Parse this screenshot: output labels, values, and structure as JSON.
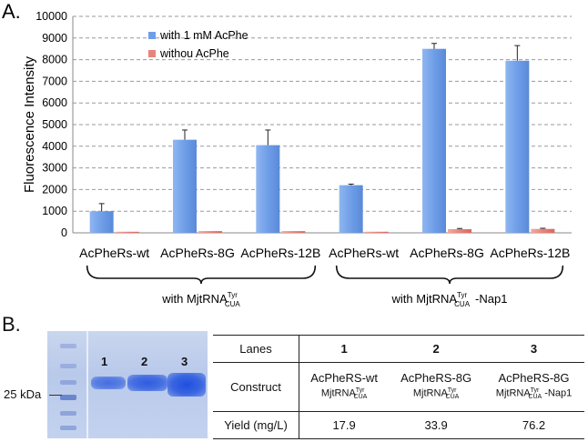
{
  "panel_a_label": "A.",
  "panel_b_label": "B.",
  "colors": {
    "with": "#6f9ee8",
    "without": "#e8847a",
    "grid": "#9a9a9a"
  },
  "chart_data": {
    "type": "bar",
    "title": "",
    "xlabel": "",
    "ylabel": "Fluorescence Intensity",
    "ylim": [
      0,
      10000
    ],
    "yticks": [
      0,
      1000,
      2000,
      3000,
      4000,
      5000,
      6000,
      7000,
      8000,
      9000,
      10000
    ],
    "grid": true,
    "legend_position": "top-left",
    "categories": [
      "AcPheRs-wt",
      "AcPheRs-8G",
      "AcPheRs-12B",
      "AcPheRs-wt",
      "AcPheRs-8G",
      "AcPheRs-12B"
    ],
    "series": [
      {
        "name": "with 1 mM AcPhe",
        "values": [
          1000,
          4300,
          4050,
          2200,
          8500,
          7950
        ],
        "errors": [
          350,
          450,
          700,
          50,
          250,
          700
        ]
      },
      {
        "name": "withou AcPhe",
        "values": [
          50,
          80,
          80,
          50,
          170,
          180
        ],
        "errors": [
          0,
          0,
          0,
          0,
          30,
          30
        ]
      }
    ],
    "groups": [
      {
        "prefix": "with",
        "trna": "MjtRNA",
        "sup": "Tyr",
        "sub": "CUA",
        "suffix": ""
      },
      {
        "prefix": "with",
        "trna": "MjtRNA",
        "sup": "Tyr",
        "sub": "CUA",
        "suffix": "-Nap1"
      }
    ]
  },
  "gel": {
    "marker_label": "25 kDa",
    "lanes": [
      "1",
      "2",
      "3"
    ]
  },
  "table": {
    "headers": [
      "Lanes",
      "1",
      "2",
      "3"
    ],
    "construct_label": "Construct",
    "constructs": [
      {
        "name": "AcPheRS-wt",
        "trna": "MjtRNA",
        "sup": "Tyr",
        "sub": "CUA",
        "suffix": ""
      },
      {
        "name": "AcPheRS-8G",
        "trna": "MjtRNA",
        "sup": "Tyr",
        "sub": "CUA",
        "suffix": ""
      },
      {
        "name": "AcPheRS-8G",
        "trna": "MjtRNA",
        "sup": "Tyr",
        "sub": "CUA",
        "suffix": " -Nap1"
      }
    ],
    "yield_label": "Yield (mg/L)",
    "yields": [
      "17.9",
      "33.9",
      "76.2"
    ]
  }
}
